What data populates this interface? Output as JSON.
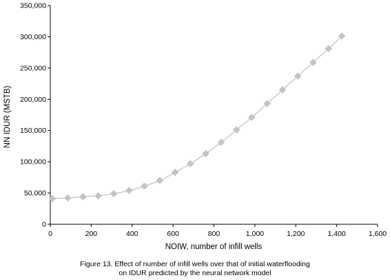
{
  "chart_data": {
    "type": "line",
    "xlabel": "NOIW, number of infill wells",
    "ylabel": "NN IDUR (MSTB)",
    "xlim": [
      0,
      1600
    ],
    "ylim": [
      0,
      350000
    ],
    "x_ticks": [
      "0",
      "200",
      "400",
      "600",
      "800",
      "1,000",
      "1,200",
      "1,400",
      "1,600"
    ],
    "y_ticks": [
      "0",
      "50,000",
      "100,000",
      "150,000",
      "200,000",
      "250,000",
      "300,000",
      "350,000"
    ],
    "grid": false,
    "legend": "none",
    "marker": "diamond",
    "line_color": "#c4c4c4",
    "marker_color": "#c4c4c4",
    "series": [
      {
        "x": [
          10,
          85,
          160,
          235,
          310,
          385,
          460,
          535,
          610,
          685,
          760,
          835,
          910,
          985,
          1060,
          1135,
          1210,
          1285,
          1360,
          1425
        ],
        "y": [
          41000,
          42000,
          44000,
          45500,
          49000,
          54000,
          61000,
          70000,
          83000,
          97000,
          113000,
          131000,
          151000,
          171000,
          193000,
          215000,
          237000,
          259000,
          281000,
          301000
        ]
      }
    ]
  },
  "caption": {
    "line1": "Figure 13. Effect of number of infill wells over that of initial waterflooding",
    "line2": "on IDUR predicted by the neural network model"
  }
}
